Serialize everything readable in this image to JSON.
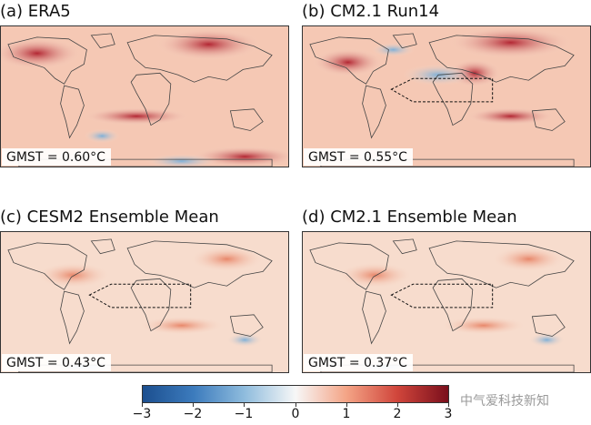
{
  "figure": {
    "panels": [
      {
        "id": "a",
        "title": "(a) ERA5",
        "gmst": "GMST = 0.60°C",
        "box": false,
        "pattern": "observed"
      },
      {
        "id": "b",
        "title": "(b) CM2.1 Run14",
        "gmst": "GMST = 0.55°C",
        "box": true,
        "pattern": "single-run"
      },
      {
        "id": "c",
        "title": "(c) CESM2 Ensemble Mean",
        "gmst": "GMST = 0.43°C",
        "box": true,
        "pattern": "ensemble"
      },
      {
        "id": "d",
        "title": "(d) CM2.1 Ensemble Mean",
        "gmst": "GMST = 0.37°C",
        "box": true,
        "pattern": "ensemble"
      }
    ],
    "colorbar": {
      "min": -3,
      "max": 3,
      "ticks": [
        "−3",
        "−2",
        "−1",
        "0",
        "1",
        "2",
        "3"
      ],
      "colors": [
        "#1c4f8f",
        "#3c7bbd",
        "#8fbcdd",
        "#f7f7f7",
        "#f4a486",
        "#d0453b",
        "#7a0f1c"
      ]
    },
    "watermark": "中气爱科技新知"
  }
}
